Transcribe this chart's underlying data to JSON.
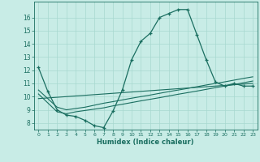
{
  "title": "",
  "xlabel": "Humidex (Indice chaleur)",
  "ylabel": "",
  "bg_color": "#c8ece6",
  "grid_color": "#a8d8d0",
  "line_color": "#1a6e60",
  "xlim": [
    -0.5,
    23.5
  ],
  "ylim": [
    7.5,
    17.2
  ],
  "xticks": [
    0,
    1,
    2,
    3,
    4,
    5,
    6,
    7,
    8,
    9,
    10,
    11,
    12,
    13,
    14,
    15,
    16,
    17,
    18,
    19,
    20,
    21,
    22,
    23
  ],
  "yticks": [
    8,
    9,
    10,
    11,
    12,
    13,
    14,
    15,
    16
  ],
  "line1_x": [
    0,
    1,
    2,
    3,
    4,
    5,
    6,
    7,
    8,
    9,
    10,
    11,
    12,
    13,
    14,
    15,
    16,
    17,
    18,
    19,
    20,
    21,
    22,
    23
  ],
  "line1_y": [
    12.2,
    10.4,
    9.0,
    8.6,
    8.5,
    8.2,
    7.8,
    7.65,
    8.9,
    10.5,
    12.8,
    14.2,
    14.8,
    16.0,
    16.3,
    16.6,
    16.6,
    14.7,
    12.8,
    11.1,
    10.8,
    11.0,
    10.8,
    10.8
  ],
  "line2_x": [
    0,
    2,
    3,
    4,
    5,
    6,
    7,
    8,
    9,
    10,
    11,
    12,
    13,
    14,
    15,
    16,
    17,
    18,
    19,
    20,
    21,
    22,
    23
  ],
  "line2_y": [
    10.5,
    9.2,
    9.0,
    9.1,
    9.2,
    9.35,
    9.5,
    9.62,
    9.75,
    9.88,
    10.0,
    10.12,
    10.25,
    10.38,
    10.5,
    10.62,
    10.75,
    10.88,
    11.0,
    11.12,
    11.25,
    11.38,
    11.5
  ],
  "line3_x": [
    0,
    2,
    3,
    4,
    5,
    6,
    7,
    8,
    9,
    10,
    11,
    12,
    13,
    14,
    15,
    16,
    17,
    18,
    19,
    20,
    21,
    22,
    23
  ],
  "line3_y": [
    10.2,
    8.85,
    8.7,
    8.85,
    8.95,
    9.05,
    9.15,
    9.3,
    9.42,
    9.55,
    9.68,
    9.8,
    9.92,
    10.05,
    10.18,
    10.3,
    10.42,
    10.55,
    10.68,
    10.8,
    10.92,
    11.05,
    11.18
  ],
  "line4_x": [
    0,
    23
  ],
  "line4_y": [
    9.85,
    11.0
  ]
}
